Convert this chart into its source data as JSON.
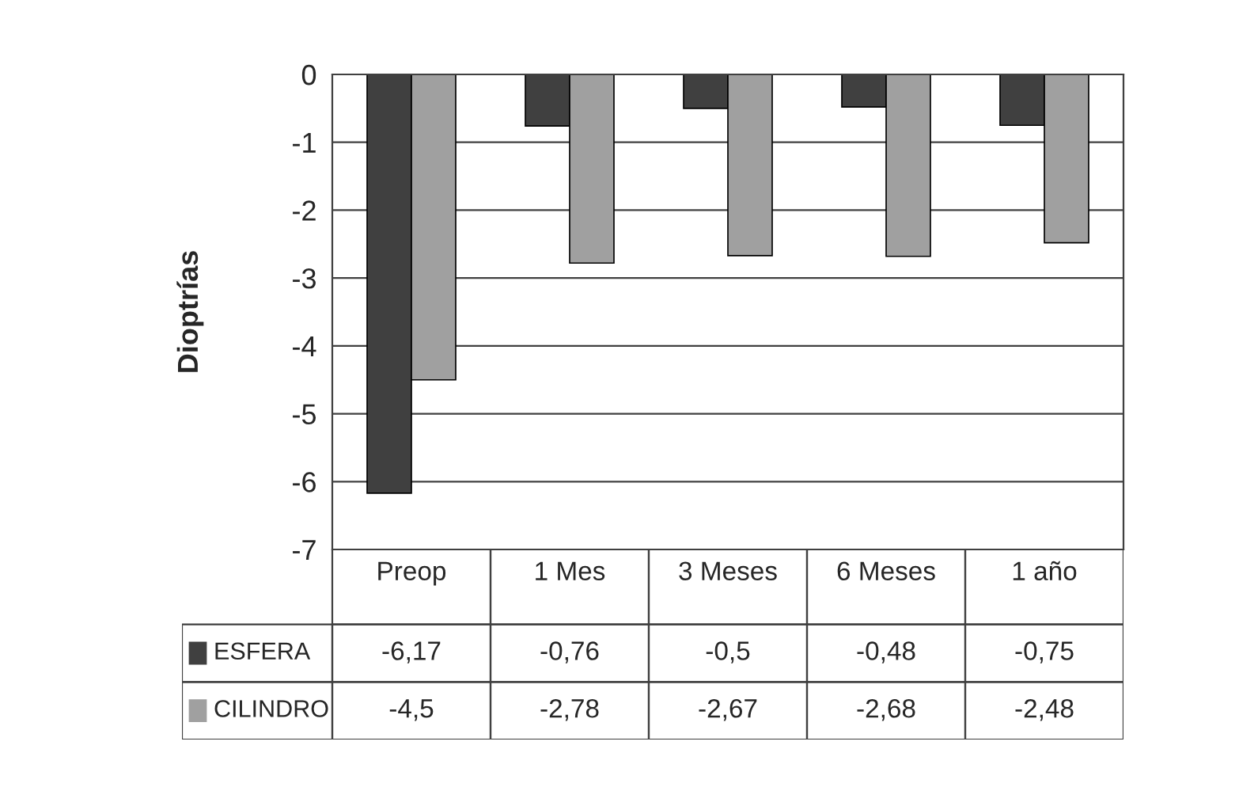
{
  "chart_data": {
    "type": "bar",
    "ylabel": "Dioptrías",
    "categories": [
      "Preop",
      "1 Mes",
      "3 Meses",
      "6 Meses",
      "1 año"
    ],
    "series": [
      {
        "name": "ESFERA",
        "color": "#404040",
        "values": [
          -6.17,
          -0.76,
          -0.5,
          -0.48,
          -0.75
        ],
        "value_labels": [
          "-6,17",
          "-0,76",
          "-0,5",
          "-0,48",
          "-0,75"
        ]
      },
      {
        "name": "CILINDRO",
        "color": "#a0a0a0",
        "values": [
          -4.5,
          -2.78,
          -2.67,
          -2.68,
          -2.48
        ],
        "value_labels": [
          "-4,5",
          "-2,78",
          "-2,67",
          "-2,68",
          "-2,48"
        ]
      }
    ],
    "ylim": [
      -7,
      0
    ],
    "yticks": [
      0,
      -1,
      -2,
      -3,
      -4,
      -5,
      -6,
      -7
    ],
    "grid": "y",
    "legend": "bottom"
  }
}
